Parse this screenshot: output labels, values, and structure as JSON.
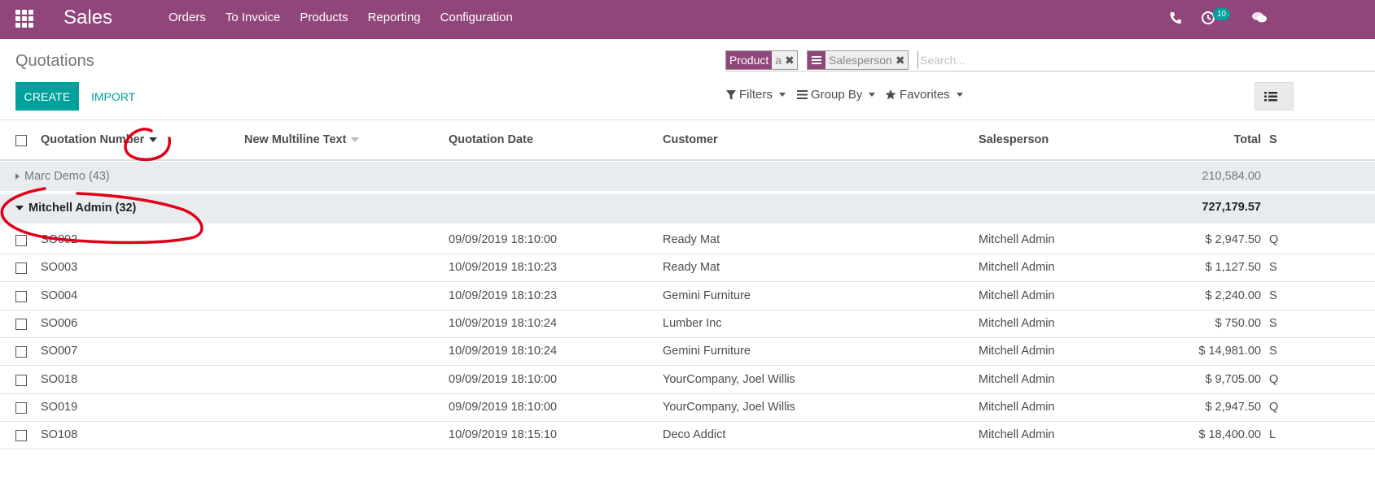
{
  "navbar": {
    "app_title": "Sales",
    "menu": [
      "Orders",
      "To Invoice",
      "Products",
      "Reporting",
      "Configuration"
    ],
    "activity_count": "10"
  },
  "control_panel": {
    "breadcrumb": "Quotations",
    "create_label": "CREATE",
    "import_label": "IMPORT",
    "facets": [
      {
        "label": "Product",
        "value": "a"
      },
      {
        "label": "Salesperson",
        "value": ""
      }
    ],
    "search_placeholder": "Search...",
    "filters_label": "Filters",
    "groupby_label": "Group By",
    "favorites_label": "Favorites"
  },
  "table": {
    "headers": {
      "number": "Quotation Number",
      "multiline": "New Multiline Text",
      "date": "Quotation Date",
      "customer": "Customer",
      "salesperson": "Salesperson",
      "total": "Total",
      "status": "S"
    },
    "groups": [
      {
        "label": "Marc Demo (43)",
        "total": "210,584.00",
        "expanded": false
      },
      {
        "label": "Mitchell Admin (32)",
        "total": "727,179.57",
        "expanded": true
      }
    ],
    "rows": [
      {
        "number": "SO002",
        "date": "09/09/2019 18:10:00",
        "customer": "Ready Mat",
        "salesperson": "Mitchell Admin",
        "total": "$ 2,947.50",
        "status": "Q"
      },
      {
        "number": "SO003",
        "date": "10/09/2019 18:10:23",
        "customer": "Ready Mat",
        "salesperson": "Mitchell Admin",
        "total": "$ 1,127.50",
        "status": "S"
      },
      {
        "number": "SO004",
        "date": "10/09/2019 18:10:23",
        "customer": "Gemini Furniture",
        "salesperson": "Mitchell Admin",
        "total": "$ 2,240.00",
        "status": "S"
      },
      {
        "number": "SO006",
        "date": "10/09/2019 18:10:24",
        "customer": "Lumber Inc",
        "salesperson": "Mitchell Admin",
        "total": "$ 750.00",
        "status": "S"
      },
      {
        "number": "SO007",
        "date": "10/09/2019 18:10:24",
        "customer": "Gemini Furniture",
        "salesperson": "Mitchell Admin",
        "total": "$ 14,981.00",
        "status": "S"
      },
      {
        "number": "SO018",
        "date": "09/09/2019 18:10:00",
        "customer": "YourCompany, Joel Willis",
        "salesperson": "Mitchell Admin",
        "total": "$ 9,705.00",
        "status": "Q"
      },
      {
        "number": "SO019",
        "date": "09/09/2019 18:10:00",
        "customer": "YourCompany, Joel Willis",
        "salesperson": "Mitchell Admin",
        "total": "$ 2,947.50",
        "status": "Q"
      },
      {
        "number": "SO108",
        "date": "10/09/2019 18:15:10",
        "customer": "Deco Addict",
        "salesperson": "Mitchell Admin",
        "total": "$ 18,400.00",
        "status": "L"
      }
    ]
  },
  "colors": {
    "brand": "#91467b",
    "accent": "#00a09d",
    "annotation": "#e0001a"
  }
}
